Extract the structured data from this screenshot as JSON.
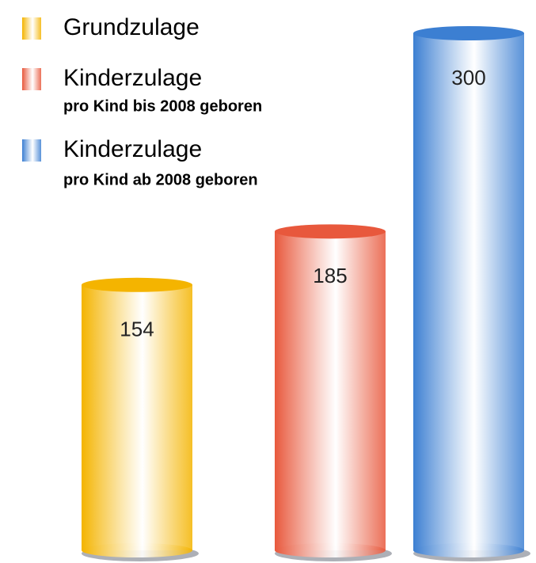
{
  "chart_data": {
    "type": "bar",
    "legend": [
      {
        "name": "Grundzulage"
      },
      {
        "name": "Kinderzulage",
        "subtitle": "pro Kind bis 2008 geboren"
      },
      {
        "name": "Kinderzulage",
        "subtitle": "pro Kind ab 2008 geboren"
      }
    ],
    "values": [
      154,
      185,
      300
    ],
    "colors": [
      "#f4b400",
      "#e8583c",
      "#3c7fd2"
    ]
  }
}
